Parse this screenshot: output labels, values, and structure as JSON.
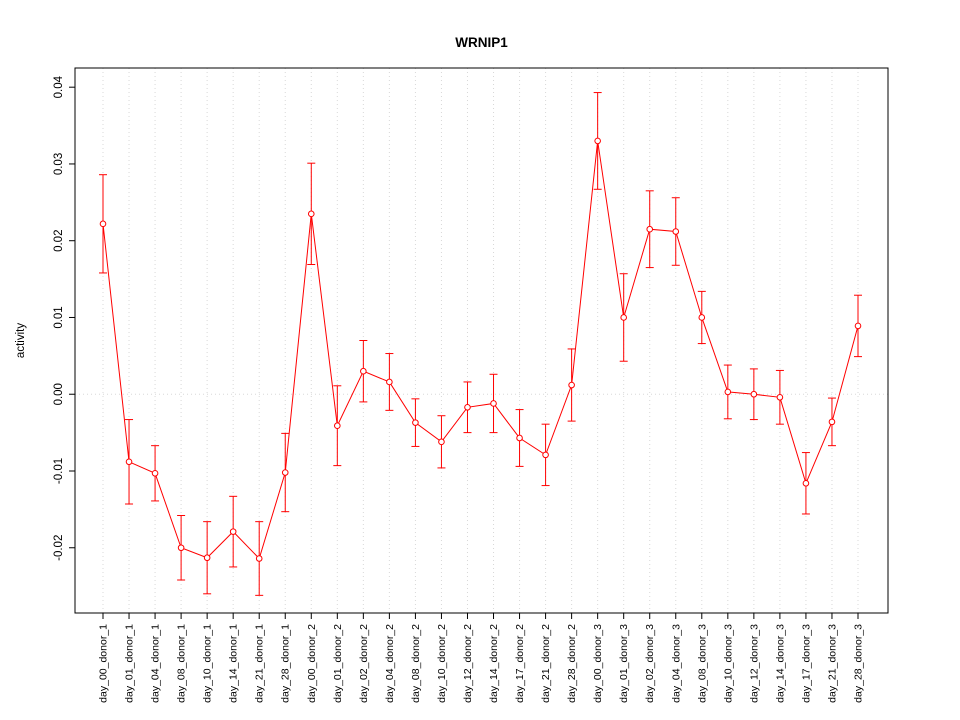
{
  "chart_data": {
    "type": "line",
    "title": "WRNIP1",
    "ylabel": "activity",
    "xlabel": "",
    "legend_position": "none",
    "grid": "dotted vertical gridlines at each category plus dotted zero line",
    "point_style": "open-circle",
    "error_bars": true,
    "categories": [
      "day_00_donor_1",
      "day_01_donor_1",
      "day_04_donor_1",
      "day_08_donor_1",
      "day_10_donor_1",
      "day_14_donor_1",
      "day_21_donor_1",
      "day_28_donor_1",
      "day_00_donor_2",
      "day_01_donor_2",
      "day_02_donor_2",
      "day_04_donor_2",
      "day_08_donor_2",
      "day_10_donor_2",
      "day_12_donor_2",
      "day_14_donor_2",
      "day_17_donor_2",
      "day_21_donor_2",
      "day_28_donor_2",
      "day_00_donor_3",
      "day_01_donor_3",
      "day_02_donor_3",
      "day_04_donor_3",
      "day_08_donor_3",
      "day_10_donor_3",
      "day_12_donor_3",
      "day_14_donor_3",
      "day_17_donor_3",
      "day_21_donor_3",
      "day_28_donor_3"
    ],
    "series": [
      {
        "name": "WRNIP1 activity",
        "values": [
          0.0222,
          -0.0088,
          -0.0103,
          -0.02,
          -0.0213,
          -0.0179,
          -0.0214,
          -0.0102,
          0.0235,
          -0.0041,
          0.003,
          0.0016,
          -0.0037,
          -0.0062,
          -0.0017,
          -0.0012,
          -0.0057,
          -0.0079,
          0.0012,
          0.033,
          0.01,
          0.0215,
          0.0212,
          0.01,
          0.0003,
          0.0,
          -0.0004,
          -0.0116,
          -0.0036,
          0.0089
        ],
        "errors": [
          0.0064,
          0.0055,
          0.0036,
          0.0042,
          0.0047,
          0.0046,
          0.0048,
          0.0051,
          0.0066,
          0.0052,
          0.004,
          0.0037,
          0.0031,
          0.0034,
          0.0033,
          0.0038,
          0.0037,
          0.004,
          0.0047,
          0.0063,
          0.0057,
          0.005,
          0.0044,
          0.0034,
          0.0035,
          0.0033,
          0.0035,
          0.004,
          0.0031,
          0.004
        ]
      }
    ],
    "yticks": [
      -0.02,
      -0.01,
      0.0,
      0.01,
      0.02,
      0.03,
      0.04
    ],
    "ytick_labels": [
      "-0.02",
      "-0.01",
      "0.00",
      "0.01",
      "0.02",
      "0.03",
      "0.04"
    ],
    "ylim": [
      -0.0285,
      0.0425
    ],
    "colors": {
      "series": "#ff0000",
      "grid": "#d8d8d8",
      "axis": "#000000",
      "background": "#ffffff"
    }
  }
}
